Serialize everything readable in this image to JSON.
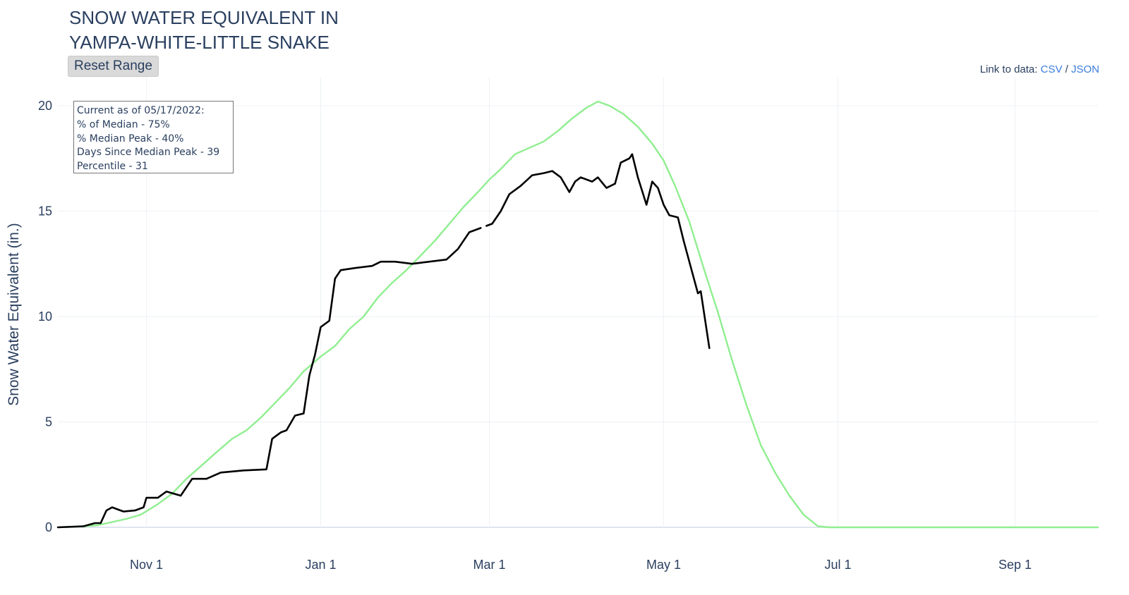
{
  "header": {
    "title_line1": "SNOW WATER EQUIVALENT IN",
    "title_line2": "YAMPA-WHITE-LITTLE SNAKE",
    "reset_label": "Reset Range",
    "link_prefix": "Link to data:",
    "link_csv": "CSV",
    "link_sep": "/",
    "link_json": "JSON"
  },
  "annotation": {
    "line1": "Current as of 05/17/2022:",
    "line2": "% of Median - 75%",
    "line3": "% Median Peak - 40%",
    "line4": "Days Since Median Peak - 39",
    "line5": "Percentile - 31"
  },
  "chart_data": {
    "type": "line",
    "title": "SNOW WATER EQUIVALENT IN YAMPA-WHITE-LITTLE SNAKE",
    "xlabel": "",
    "ylabel": "Snow Water Equivalent (in.)",
    "ylim": [
      0,
      20.6
    ],
    "xlim": [
      "2021-10-01",
      "2022-09-30"
    ],
    "x_ticks": [
      {
        "date": "2021-11-01",
        "label": "Nov 1"
      },
      {
        "date": "2022-01-01",
        "label": "Jan 1"
      },
      {
        "date": "2022-03-01",
        "label": "Mar 1"
      },
      {
        "date": "2022-05-01",
        "label": "May 1"
      },
      {
        "date": "2022-07-01",
        "label": "Jul 1"
      },
      {
        "date": "2022-09-01",
        "label": "Sep 1"
      }
    ],
    "y_ticks": [
      0,
      5,
      10,
      15,
      20
    ],
    "grid": true,
    "colors": {
      "current": "#000000",
      "median": "#90ee90"
    },
    "series": [
      {
        "key": "median",
        "color": "#90ee90",
        "points": [
          [
            "2021-10-01",
            0.0
          ],
          [
            "2021-10-10",
            0.05
          ],
          [
            "2021-10-15",
            0.1
          ],
          [
            "2021-10-20",
            0.25
          ],
          [
            "2021-10-25",
            0.4
          ],
          [
            "2021-10-30",
            0.6
          ],
          [
            "2021-11-05",
            1.1
          ],
          [
            "2021-11-10",
            1.6
          ],
          [
            "2021-11-15",
            2.3
          ],
          [
            "2021-11-20",
            2.9
          ],
          [
            "2021-11-25",
            3.5
          ],
          [
            "2021-12-01",
            4.2
          ],
          [
            "2021-12-06",
            4.6
          ],
          [
            "2021-12-11",
            5.2
          ],
          [
            "2021-12-16",
            5.9
          ],
          [
            "2021-12-21",
            6.6
          ],
          [
            "2021-12-26",
            7.4
          ],
          [
            "2022-01-01",
            8.1
          ],
          [
            "2022-01-06",
            8.6
          ],
          [
            "2022-01-11",
            9.4
          ],
          [
            "2022-01-16",
            10.0
          ],
          [
            "2022-01-21",
            10.9
          ],
          [
            "2022-01-26",
            11.6
          ],
          [
            "2022-01-31",
            12.2
          ],
          [
            "2022-02-05",
            12.9
          ],
          [
            "2022-02-10",
            13.6
          ],
          [
            "2022-02-15",
            14.4
          ],
          [
            "2022-02-20",
            15.2
          ],
          [
            "2022-02-25",
            15.9
          ],
          [
            "2022-03-01",
            16.5
          ],
          [
            "2022-03-05",
            17.0
          ],
          [
            "2022-03-10",
            17.7
          ],
          [
            "2022-03-15",
            18.0
          ],
          [
            "2022-03-20",
            18.3
          ],
          [
            "2022-03-25",
            18.8
          ],
          [
            "2022-03-30",
            19.4
          ],
          [
            "2022-04-04",
            19.9
          ],
          [
            "2022-04-08",
            20.2
          ],
          [
            "2022-04-12",
            20.0
          ],
          [
            "2022-04-17",
            19.6
          ],
          [
            "2022-04-22",
            19.0
          ],
          [
            "2022-04-27",
            18.2
          ],
          [
            "2022-05-01",
            17.4
          ],
          [
            "2022-05-05",
            16.2
          ],
          [
            "2022-05-10",
            14.5
          ],
          [
            "2022-05-15",
            12.3
          ],
          [
            "2022-05-20",
            10.2
          ],
          [
            "2022-05-25",
            7.9
          ],
          [
            "2022-05-30",
            5.8
          ],
          [
            "2022-06-04",
            3.9
          ],
          [
            "2022-06-09",
            2.6
          ],
          [
            "2022-06-14",
            1.5
          ],
          [
            "2022-06-19",
            0.6
          ],
          [
            "2022-06-24",
            0.05
          ],
          [
            "2022-06-28",
            0.0
          ],
          [
            "2022-09-30",
            0.0
          ]
        ]
      },
      {
        "key": "current",
        "color": "#000000",
        "segments": [
          [
            [
              "2021-10-01",
              0.0
            ],
            [
              "2021-10-10",
              0.05
            ],
            [
              "2021-10-14",
              0.2
            ],
            [
              "2021-10-16",
              0.2
            ],
            [
              "2021-10-18",
              0.8
            ],
            [
              "2021-10-20",
              0.95
            ],
            [
              "2021-10-24",
              0.75
            ],
            [
              "2021-10-28",
              0.8
            ],
            [
              "2021-10-31",
              0.95
            ],
            [
              "2021-11-01",
              1.4
            ],
            [
              "2021-11-05",
              1.4
            ],
            [
              "2021-11-08",
              1.7
            ],
            [
              "2021-11-13",
              1.5
            ],
            [
              "2021-11-17",
              2.3
            ],
            [
              "2021-11-22",
              2.3
            ],
            [
              "2021-11-27",
              2.6
            ],
            [
              "2021-12-05",
              2.7
            ],
            [
              "2021-12-13",
              2.75
            ],
            [
              "2021-12-15",
              4.2
            ],
            [
              "2021-12-18",
              4.5
            ],
            [
              "2021-12-20",
              4.6
            ],
            [
              "2021-12-23",
              5.3
            ],
            [
              "2021-12-26",
              5.4
            ],
            [
              "2021-12-28",
              7.2
            ],
            [
              "2021-12-30",
              8.2
            ],
            [
              "2022-01-01",
              9.5
            ],
            [
              "2022-01-04",
              9.8
            ],
            [
              "2022-01-06",
              11.8
            ],
            [
              "2022-01-08",
              12.2
            ],
            [
              "2022-01-13",
              12.3
            ],
            [
              "2022-01-19",
              12.4
            ],
            [
              "2022-01-22",
              12.6
            ],
            [
              "2022-01-27",
              12.6
            ],
            [
              "2022-02-02",
              12.5
            ],
            [
              "2022-02-08",
              12.6
            ],
            [
              "2022-02-14",
              12.7
            ],
            [
              "2022-02-18",
              13.2
            ],
            [
              "2022-02-22",
              14.0
            ],
            [
              "2022-02-26",
              14.2
            ]
          ],
          [
            [
              "2022-02-28",
              14.3
            ],
            [
              "2022-03-02",
              14.4
            ],
            [
              "2022-03-05",
              15.0
            ],
            [
              "2022-03-08",
              15.8
            ],
            [
              "2022-03-12",
              16.2
            ],
            [
              "2022-03-16",
              16.7
            ],
            [
              "2022-03-20",
              16.8
            ],
            [
              "2022-03-23",
              16.9
            ],
            [
              "2022-03-26",
              16.6
            ],
            [
              "2022-03-29",
              15.9
            ],
            [
              "2022-03-31",
              16.4
            ],
            [
              "2022-04-02",
              16.6
            ],
            [
              "2022-04-06",
              16.4
            ],
            [
              "2022-04-08",
              16.6
            ],
            [
              "2022-04-11",
              16.1
            ],
            [
              "2022-04-14",
              16.3
            ],
            [
              "2022-04-16",
              17.3
            ],
            [
              "2022-04-19",
              17.5
            ],
            [
              "2022-04-20",
              17.7
            ],
            [
              "2022-04-22",
              16.6
            ],
            [
              "2022-04-25",
              15.3
            ],
            [
              "2022-04-27",
              16.4
            ],
            [
              "2022-04-29",
              16.1
            ],
            [
              "2022-05-01",
              15.3
            ],
            [
              "2022-05-03",
              14.8
            ],
            [
              "2022-05-06",
              14.7
            ],
            [
              "2022-05-08",
              13.6
            ],
            [
              "2022-05-10",
              12.6
            ],
            [
              "2022-05-12",
              11.6
            ],
            [
              "2022-05-13",
              11.1
            ],
            [
              "2022-05-14",
              11.2
            ],
            [
              "2022-05-17",
              8.5
            ]
          ]
        ]
      }
    ]
  }
}
